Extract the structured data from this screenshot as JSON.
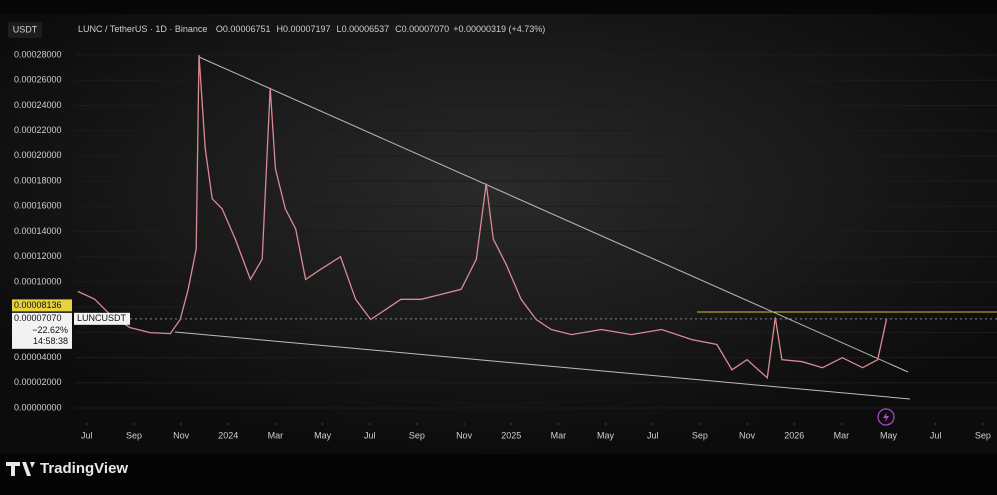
{
  "chart_data": {
    "type": "line",
    "currency": "USDT",
    "symbol": "LUNC / TetherUS · 1D · Binance",
    "ohlc": [
      {
        "key": "O",
        "text": "0.00006751"
      },
      {
        "key": "H",
        "text": "0.00007197"
      },
      {
        "key": "L",
        "text": "0.00006537"
      },
      {
        "key": "C",
        "text": "0.00007070"
      }
    ],
    "change": "+0.00000319 (+4.73%)",
    "series": [
      {
        "name": "LUNCUSDT",
        "color": "#d98a94",
        "x": [
          -0.19,
          0.17,
          0.49,
          0.91,
          1.34,
          1.77,
          1.98,
          2.15,
          2.32,
          2.38,
          2.51,
          2.66,
          2.87,
          3.15,
          3.47,
          3.72,
          3.89,
          4.0,
          4.21,
          4.43,
          4.64,
          4.96,
          5.38,
          5.7,
          6.02,
          6.34,
          6.66,
          7.09,
          7.51,
          7.94,
          8.26,
          8.47,
          8.62,
          8.89,
          9.21,
          9.53,
          9.85,
          10.28,
          10.91,
          11.55,
          12.19,
          12.83,
          13.36,
          13.68,
          14.0,
          14.43,
          14.6,
          14.74,
          15.17,
          15.6,
          16.02,
          16.45,
          16.77,
          16.96
        ],
        "values": [
          9.25e-05,
          8.62e-05,
          7.42e-05,
          6.38e-05,
          5.98e-05,
          5.9e-05,
          7.02e-05,
          9.41e-05,
          0.000126,
          0.00028,
          0.000206,
          0.000166,
          0.000158,
          0.000134,
          0.000102,
          0.000118,
          0.000254,
          0.00019,
          0.000158,
          0.000142,
          0.000102,
          0.00011,
          0.00012,
          8.62e-05,
          7.02e-05,
          7.82e-05,
          8.62e-05,
          8.62e-05,
          9.01e-05,
          9.41e-05,
          0.000118,
          0.000178,
          0.000134,
          0.000114,
          8.62e-05,
          7.02e-05,
          6.22e-05,
          5.82e-05,
          6.22e-05,
          5.82e-05,
          6.22e-05,
          5.42e-05,
          5.03e-05,
          3.03e-05,
          3.83e-05,
          2.39e-05,
          7.18e-05,
          3.83e-05,
          3.67e-05,
          3.19e-05,
          3.99e-05,
          3.19e-05,
          3.83e-05,
          7.07e-05
        ]
      }
    ],
    "xlim": [
      -0.25,
      19.3
    ],
    "xticks": [
      {
        "value": 0,
        "label": "Jul"
      },
      {
        "value": 1,
        "label": "Sep"
      },
      {
        "value": 2,
        "label": "Nov"
      },
      {
        "value": 3,
        "label": "2024"
      },
      {
        "value": 4,
        "label": "Mar"
      },
      {
        "value": 5,
        "label": "May"
      },
      {
        "value": 6,
        "label": "Jul"
      },
      {
        "value": 7,
        "label": "Sep"
      },
      {
        "value": 8,
        "label": "Nov"
      },
      {
        "value": 9,
        "label": "2025"
      },
      {
        "value": 10,
        "label": "Mar"
      },
      {
        "value": 11,
        "label": "May"
      },
      {
        "value": 12,
        "label": "Jul"
      },
      {
        "value": 13,
        "label": "Sep"
      },
      {
        "value": 14,
        "label": "Nov"
      },
      {
        "value": 15,
        "label": "2026"
      },
      {
        "value": 16,
        "label": "Mar"
      },
      {
        "value": 17,
        "label": "May"
      },
      {
        "value": 18,
        "label": "Jul"
      },
      {
        "value": 19,
        "label": "Sep"
      }
    ],
    "ylim": [
      -5.6e-06,
      0.000284
    ],
    "yticks": [
      {
        "value": 0,
        "label": "0.00000000"
      },
      {
        "value": 2e-05,
        "label": "0.00002000"
      },
      {
        "value": 4e-05,
        "label": "0.00004000"
      },
      {
        "value": 6e-05,
        "label": "0.00006000"
      },
      {
        "value": 8e-05,
        "label": "0.00008000"
      },
      {
        "value": 0.0001,
        "label": "0.00010000"
      },
      {
        "value": 0.00012,
        "label": "0.00012000"
      },
      {
        "value": 0.00014,
        "label": "0.00014000"
      },
      {
        "value": 0.00016,
        "label": "0.00016000"
      },
      {
        "value": 0.00018,
        "label": "0.00018000"
      },
      {
        "value": 0.0002,
        "label": "0.00020000"
      },
      {
        "value": 0.00022,
        "label": "0.00022000"
      },
      {
        "value": 0.00024,
        "label": "0.00024000"
      },
      {
        "value": 0.00026,
        "label": "0.00026000"
      },
      {
        "value": 0.00028,
        "label": "0.00028000"
      }
    ],
    "alert_price": {
      "value": 8.136e-05,
      "label": "0.00008136"
    },
    "last_price": {
      "value": 7.07e-05,
      "label": "0.00007070",
      "change": "−22.62%",
      "countdown": "14:58:38"
    },
    "brand": "TradingView"
  }
}
